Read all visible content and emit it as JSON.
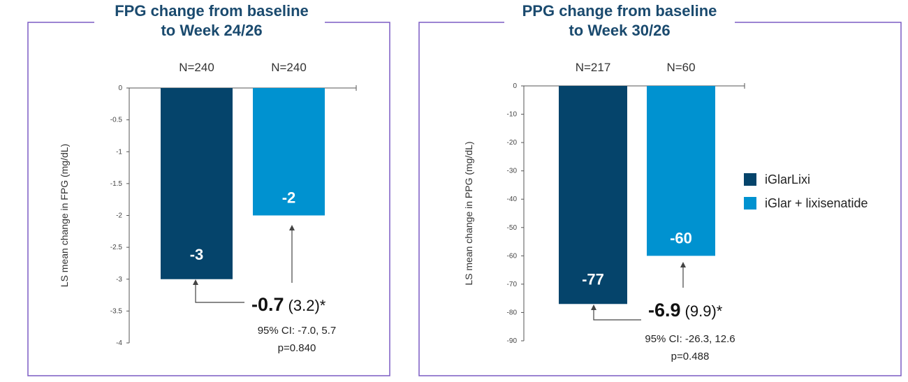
{
  "colors": {
    "iglarlixi": "#05446b",
    "iglar_lixi": "#0092d0",
    "frame": "#7b5cc4",
    "title": "#1a4a6e"
  },
  "legend": [
    {
      "label": "iGlarLixi",
      "color": "#05446b"
    },
    {
      "label": "iGlar + lixisenatide",
      "color": "#0092d0"
    }
  ],
  "chart_data": [
    {
      "type": "bar",
      "title_line1": "FPG change from baseline",
      "title_line2": "to Week 24/26",
      "ylabel": "LS mean change in FPG (mg/dL)",
      "ylim": [
        -4,
        0
      ],
      "yticks": [
        "0",
        "-0.5",
        "-1",
        "-1.5",
        "-2",
        "-2.5",
        "-3",
        "-3.5",
        "-4"
      ],
      "ytick_values": [
        0,
        -0.5,
        -1,
        -1.5,
        -2,
        -2.5,
        -3,
        -3.5,
        -4
      ],
      "series": [
        {
          "name": "iGlarLixi",
          "values": [
            -3
          ],
          "n_label": "N=240",
          "data_label": "-3"
        },
        {
          "name": "iGlar + lixisenatide",
          "values": [
            -2
          ],
          "n_label": "N=240",
          "data_label": "-2"
        }
      ],
      "difference": {
        "value": "-0.7",
        "se": "(3.2)*",
        "ci": "95% CI: -7.0, 5.7",
        "p": "p=0.840"
      }
    },
    {
      "type": "bar",
      "title_line1": "PPG change from baseline",
      "title_line2": "to Week 30/26",
      "ylabel": "LS mean change in PPG (mg/dL)",
      "ylim": [
        -90,
        0
      ],
      "yticks": [
        "0",
        "-10",
        "-20",
        "-30",
        "-40",
        "-50",
        "-60",
        "-70",
        "-80",
        "-90"
      ],
      "ytick_values": [
        0,
        -10,
        -20,
        -30,
        -40,
        -50,
        -60,
        -70,
        -80,
        -90
      ],
      "series": [
        {
          "name": "iGlarLixi",
          "values": [
            -77
          ],
          "n_label": "N=217",
          "data_label": "-77"
        },
        {
          "name": "iGlar + lixisenatide",
          "values": [
            -60
          ],
          "n_label": "N=60",
          "data_label": "-60"
        }
      ],
      "difference": {
        "value": "-6.9",
        "se": "(9.9)*",
        "ci": "95% CI: -26.3, 12.6",
        "p": "p=0.488"
      }
    }
  ]
}
